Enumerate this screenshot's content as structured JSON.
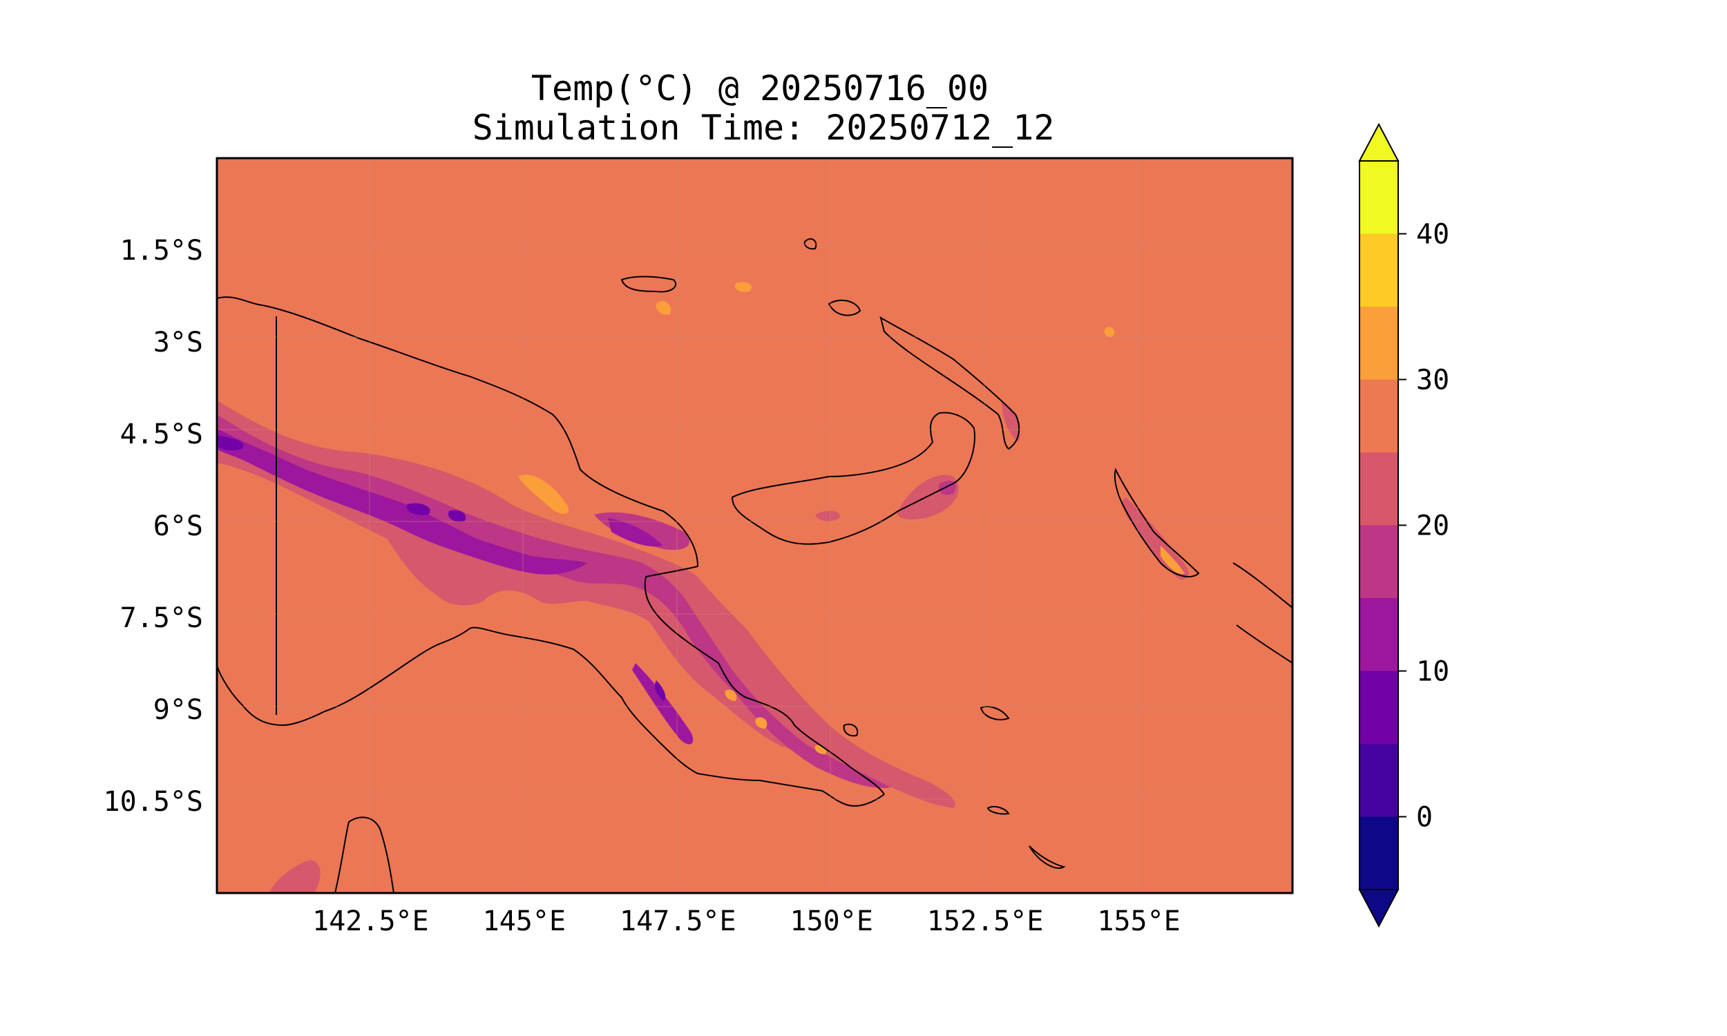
{
  "title": {
    "line1": "Temp(°C) @ 20250716_00",
    "line2": "Simulation Time: 20250712_12"
  },
  "chart_data": {
    "type": "heatmap",
    "title": "Temp(°C) @ 20250716_00",
    "subtitle": "Simulation Time: 20250712_12",
    "x_range": [
      140.0,
      157.5
    ],
    "y_range": [
      -12.0,
      -0.0
    ],
    "x_ticks": [
      {
        "value": 142.5,
        "label": "142.5°E"
      },
      {
        "value": 145.0,
        "label": "145°E"
      },
      {
        "value": 147.5,
        "label": "147.5°E"
      },
      {
        "value": 150.0,
        "label": "150°E"
      },
      {
        "value": 152.5,
        "label": "152.5°E"
      },
      {
        "value": 155.0,
        "label": "155°E"
      }
    ],
    "y_ticks": [
      {
        "value": -1.5,
        "label": "1.5°S"
      },
      {
        "value": -3.0,
        "label": "3°S"
      },
      {
        "value": -4.5,
        "label": "4.5°S"
      },
      {
        "value": -6.0,
        "label": "6°S"
      },
      {
        "value": -7.5,
        "label": "7.5°S"
      },
      {
        "value": -9.0,
        "label": "9°S"
      },
      {
        "value": -10.5,
        "label": "10.5°S"
      }
    ],
    "background_level": [
      25,
      30
    ],
    "colorbar": {
      "levels": [
        -5,
        0,
        5,
        10,
        15,
        20,
        25,
        30,
        35,
        40,
        45
      ],
      "colors": [
        "#0d0887",
        "#46039f",
        "#7201a8",
        "#9c179e",
        "#bd3786",
        "#d8576b",
        "#ed7953",
        "#fb9f3a",
        "#fdca26",
        "#f0f921"
      ],
      "extend_min_color": "#0d0887",
      "extend_max_color": "#f0f921",
      "tick_labels": [
        {
          "value": 0,
          "label": "0"
        },
        {
          "value": 10,
          "label": "10"
        },
        {
          "value": 20,
          "label": "20"
        },
        {
          "value": 30,
          "label": "30"
        },
        {
          "value": 40,
          "label": "40"
        }
      ]
    },
    "grid": true,
    "features": [
      "coastlines",
      "borders"
    ]
  }
}
